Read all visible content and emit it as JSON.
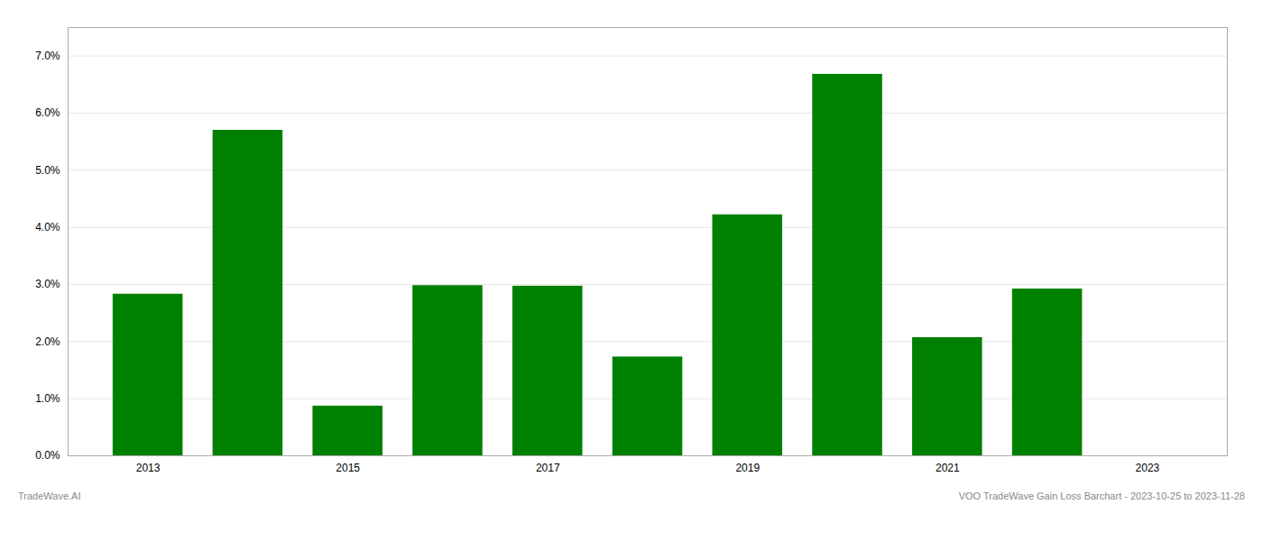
{
  "chart_data": {
    "type": "bar",
    "x": [
      2013,
      2014,
      2015,
      2016,
      2017,
      2018,
      2019,
      2020,
      2021,
      2022,
      2023
    ],
    "values": [
      0.0283,
      0.057,
      0.0087,
      0.0298,
      0.0297,
      0.0173,
      0.0422,
      0.0668,
      0.0207,
      0.0292,
      0.0
    ],
    "color": "#008000",
    "xlim": [
      2012.2,
      2023.8
    ],
    "xticks": [
      2013,
      2015,
      2017,
      2019,
      2021,
      2023
    ],
    "ylim": [
      0.0,
      0.075
    ],
    "yticks": [
      {
        "value": 0.0,
        "label": "0.0%"
      },
      {
        "value": 0.01,
        "label": "1.0%"
      },
      {
        "value": 0.02,
        "label": "2.0%"
      },
      {
        "value": 0.03,
        "label": "3.0%"
      },
      {
        "value": 0.04,
        "label": "4.0%"
      },
      {
        "value": 0.05,
        "label": "5.0%"
      },
      {
        "value": 0.06,
        "label": "6.0%"
      },
      {
        "value": 0.07,
        "label": "7.0%"
      }
    ],
    "grid": true,
    "annotations": [
      "TradeWave.AI",
      "VOO TradeWave Gain Loss Barchart - 2023-10-25 to 2023-11-28"
    ]
  }
}
